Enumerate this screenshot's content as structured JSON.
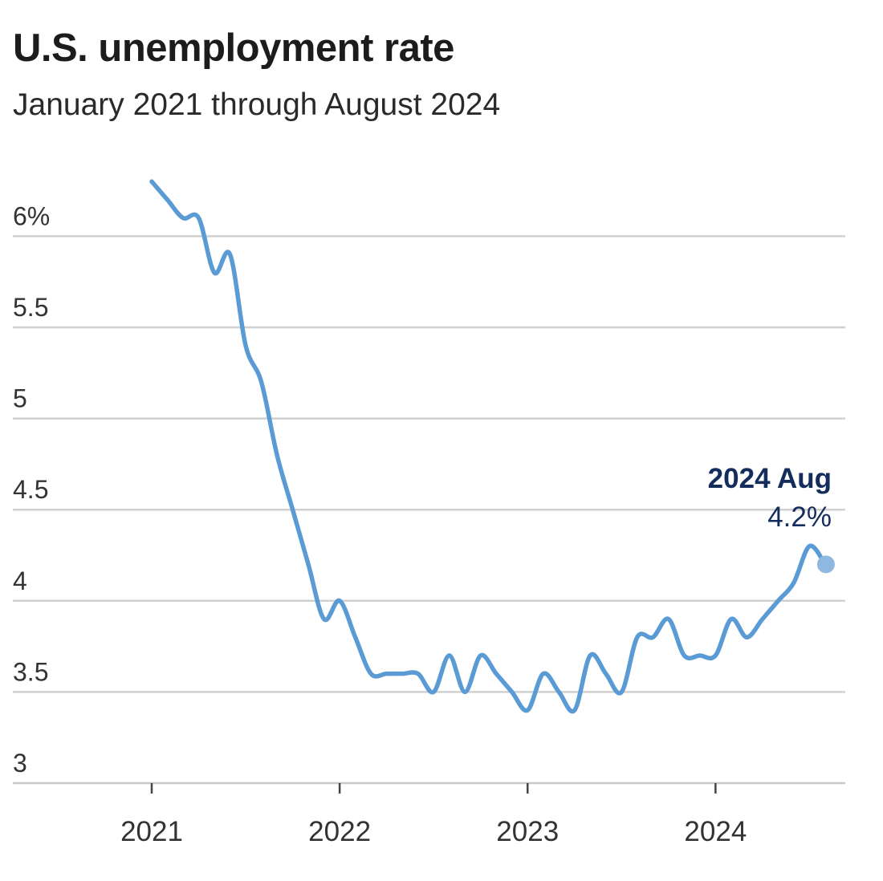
{
  "chart_data": {
    "type": "line",
    "title": "U.S. unemployment rate",
    "subtitle": "January 2021 through August 2024",
    "xlabel": "",
    "ylabel": "",
    "ylim": [
      3,
      6.5
    ],
    "grid": true,
    "y_ticks": [
      {
        "value": 3,
        "label": "3"
      },
      {
        "value": 3.5,
        "label": "3.5"
      },
      {
        "value": 4,
        "label": "4"
      },
      {
        "value": 4.5,
        "label": "4.5"
      },
      {
        "value": 5,
        "label": "5"
      },
      {
        "value": 5.5,
        "label": "5.5"
      },
      {
        "value": 6,
        "label": "6%"
      }
    ],
    "x_ticks": [
      {
        "month_index": 0,
        "label": "2021"
      },
      {
        "month_index": 12,
        "label": "2022"
      },
      {
        "month_index": 24,
        "label": "2023"
      },
      {
        "month_index": 36,
        "label": "2024"
      }
    ],
    "series": [
      {
        "name": "Unemployment rate",
        "start": "2021-01",
        "values": [
          6.3,
          6.2,
          6.1,
          6.1,
          5.8,
          5.9,
          5.4,
          5.2,
          4.8,
          4.5,
          4.2,
          3.9,
          4.0,
          3.8,
          3.6,
          3.6,
          3.6,
          3.6,
          3.5,
          3.7,
          3.5,
          3.7,
          3.6,
          3.5,
          3.4,
          3.6,
          3.5,
          3.4,
          3.7,
          3.6,
          3.5,
          3.8,
          3.8,
          3.9,
          3.7,
          3.7,
          3.7,
          3.9,
          3.8,
          3.9,
          4.0,
          4.1,
          4.3,
          4.2
        ]
      }
    ],
    "annotation": {
      "label": "2024 Aug",
      "value_text": "4.2%",
      "month_index": 43,
      "value": 4.2
    },
    "colors": {
      "line": "#5b9bd5",
      "marker": "#8fb8e0",
      "annotation": "#142d5c",
      "grid": "#d0d0d0",
      "axis": "#c8c8c8",
      "tick_mark": "#444444"
    }
  }
}
